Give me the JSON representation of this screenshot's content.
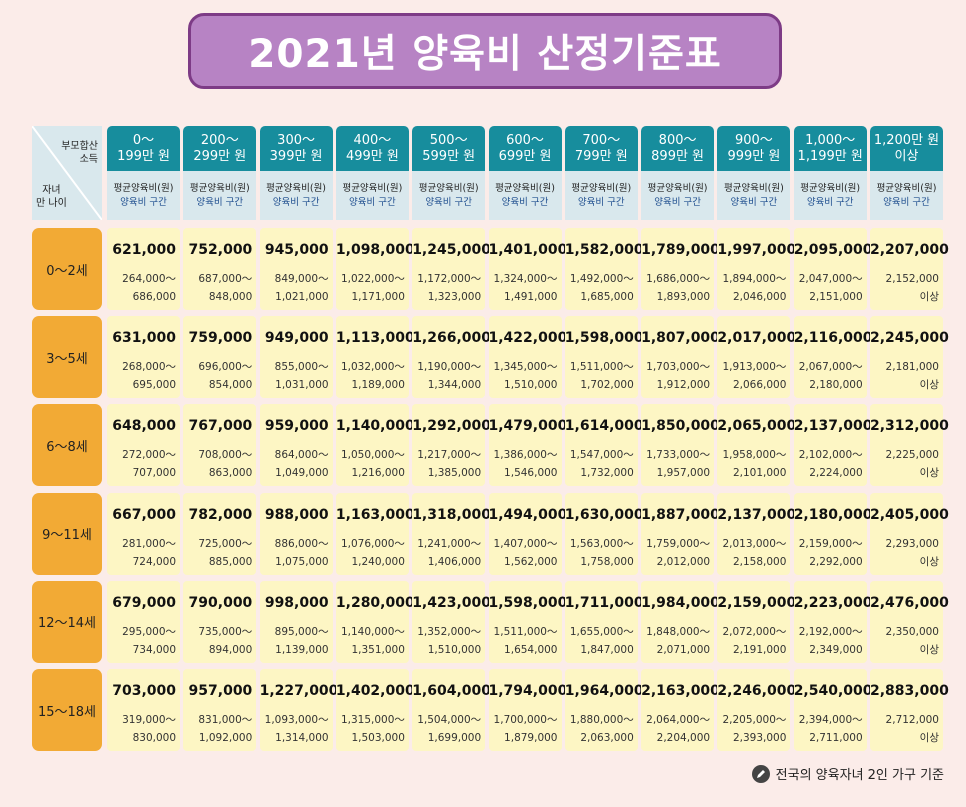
{
  "title": "2021년 양육비 산정기준표",
  "corner": {
    "income_label_1": "부모합산",
    "income_label_2": "소득",
    "age_label_1": "자녀",
    "age_label_2": "만 나이"
  },
  "columns": [
    {
      "l1": "0～",
      "l2": "199만 원"
    },
    {
      "l1": "200～",
      "l2": "299만 원"
    },
    {
      "l1": "300～",
      "l2": "399만 원"
    },
    {
      "l1": "400～",
      "l2": "499만 원"
    },
    {
      "l1": "500～",
      "l2": "599만 원"
    },
    {
      "l1": "600～",
      "l2": "699만 원"
    },
    {
      "l1": "700～",
      "l2": "799만 원"
    },
    {
      "l1": "800～",
      "l2": "899만 원"
    },
    {
      "l1": "900～",
      "l2": "999만 원"
    },
    {
      "l1": "1,000～",
      "l2": "1,199만 원"
    },
    {
      "l1": "1,200만 원",
      "l2": "이상"
    }
  ],
  "subheader": {
    "avg": "평균양육비(원)",
    "range": "양육비 구간"
  },
  "rows": [
    {
      "age": "0～2세",
      "cells": [
        {
          "avg": "621,000",
          "r1": "264,000～",
          "r2": "686,000"
        },
        {
          "avg": "752,000",
          "r1": "687,000～",
          "r2": "848,000"
        },
        {
          "avg": "945,000",
          "r1": "849,000～",
          "r2": "1,021,000"
        },
        {
          "avg": "1,098,000",
          "r1": "1,022,000～",
          "r2": "1,171,000"
        },
        {
          "avg": "1,245,000",
          "r1": "1,172,000～",
          "r2": "1,323,000"
        },
        {
          "avg": "1,401,000",
          "r1": "1,324,000～",
          "r2": "1,491,000"
        },
        {
          "avg": "1,582,000",
          "r1": "1,492,000～",
          "r2": "1,685,000"
        },
        {
          "avg": "1,789,000",
          "r1": "1,686,000～",
          "r2": "1,893,000"
        },
        {
          "avg": "1,997,000",
          "r1": "1,894,000～",
          "r2": "2,046,000"
        },
        {
          "avg": "2,095,000",
          "r1": "2,047,000～",
          "r2": "2,151,000"
        },
        {
          "avg": "2,207,000",
          "r1": "2,152,000",
          "r2": "이상"
        }
      ]
    },
    {
      "age": "3～5세",
      "cells": [
        {
          "avg": "631,000",
          "r1": "268,000～",
          "r2": "695,000"
        },
        {
          "avg": "759,000",
          "r1": "696,000～",
          "r2": "854,000"
        },
        {
          "avg": "949,000",
          "r1": "855,000～",
          "r2": "1,031,000"
        },
        {
          "avg": "1,113,000",
          "r1": "1,032,000～",
          "r2": "1,189,000"
        },
        {
          "avg": "1,266,000",
          "r1": "1,190,000～",
          "r2": "1,344,000"
        },
        {
          "avg": "1,422,000",
          "r1": "1,345,000～",
          "r2": "1,510,000"
        },
        {
          "avg": "1,598,000",
          "r1": "1,511,000～",
          "r2": "1,702,000"
        },
        {
          "avg": "1,807,000",
          "r1": "1,703,000～",
          "r2": "1,912,000"
        },
        {
          "avg": "2,017,000",
          "r1": "1,913,000～",
          "r2": "2,066,000"
        },
        {
          "avg": "2,116,000",
          "r1": "2,067,000～",
          "r2": "2,180,000"
        },
        {
          "avg": "2,245,000",
          "r1": "2,181,000",
          "r2": "이상"
        }
      ]
    },
    {
      "age": "6～8세",
      "cells": [
        {
          "avg": "648,000",
          "r1": "272,000～",
          "r2": "707,000"
        },
        {
          "avg": "767,000",
          "r1": "708,000～",
          "r2": "863,000"
        },
        {
          "avg": "959,000",
          "r1": "864,000～",
          "r2": "1,049,000"
        },
        {
          "avg": "1,140,000",
          "r1": "1,050,000～",
          "r2": "1,216,000"
        },
        {
          "avg": "1,292,000",
          "r1": "1,217,000～",
          "r2": "1,385,000"
        },
        {
          "avg": "1,479,000",
          "r1": "1,386,000～",
          "r2": "1,546,000"
        },
        {
          "avg": "1,614,000",
          "r1": "1,547,000～",
          "r2": "1,732,000"
        },
        {
          "avg": "1,850,000",
          "r1": "1,733,000～",
          "r2": "1,957,000"
        },
        {
          "avg": "2,065,000",
          "r1": "1,958,000～",
          "r2": "2,101,000"
        },
        {
          "avg": "2,137,000",
          "r1": "2,102,000～",
          "r2": "2,224,000"
        },
        {
          "avg": "2,312,000",
          "r1": "2,225,000",
          "r2": "이상"
        }
      ]
    },
    {
      "age": "9～11세",
      "cells": [
        {
          "avg": "667,000",
          "r1": "281,000～",
          "r2": "724,000"
        },
        {
          "avg": "782,000",
          "r1": "725,000～",
          "r2": "885,000"
        },
        {
          "avg": "988,000",
          "r1": "886,000～",
          "r2": "1,075,000"
        },
        {
          "avg": "1,163,000",
          "r1": "1,076,000～",
          "r2": "1,240,000"
        },
        {
          "avg": "1,318,000",
          "r1": "1,241,000～",
          "r2": "1,406,000"
        },
        {
          "avg": "1,494,000",
          "r1": "1,407,000～",
          "r2": "1,562,000"
        },
        {
          "avg": "1,630,000",
          "r1": "1,563,000～",
          "r2": "1,758,000"
        },
        {
          "avg": "1,887,000",
          "r1": "1,759,000～",
          "r2": "2,012,000"
        },
        {
          "avg": "2,137,000",
          "r1": "2,013,000～",
          "r2": "2,158,000"
        },
        {
          "avg": "2,180,000",
          "r1": "2,159,000～",
          "r2": "2,292,000"
        },
        {
          "avg": "2,405,000",
          "r1": "2,293,000",
          "r2": "이상"
        }
      ]
    },
    {
      "age": "12～14세",
      "cells": [
        {
          "avg": "679,000",
          "r1": "295,000～",
          "r2": "734,000"
        },
        {
          "avg": "790,000",
          "r1": "735,000～",
          "r2": "894,000"
        },
        {
          "avg": "998,000",
          "r1": "895,000～",
          "r2": "1,139,000"
        },
        {
          "avg": "1,280,000",
          "r1": "1,140,000～",
          "r2": "1,351,000"
        },
        {
          "avg": "1,423,000",
          "r1": "1,352,000～",
          "r2": "1,510,000"
        },
        {
          "avg": "1,598,000",
          "r1": "1,511,000～",
          "r2": "1,654,000"
        },
        {
          "avg": "1,711,000",
          "r1": "1,655,000～",
          "r2": "1,847,000"
        },
        {
          "avg": "1,984,000",
          "r1": "1,848,000～",
          "r2": "2,071,000"
        },
        {
          "avg": "2,159,000",
          "r1": "2,072,000～",
          "r2": "2,191,000"
        },
        {
          "avg": "2,223,000",
          "r1": "2,192,000～",
          "r2": "2,349,000"
        },
        {
          "avg": "2,476,000",
          "r1": "2,350,000",
          "r2": "이상"
        }
      ]
    },
    {
      "age": "15～18세",
      "cells": [
        {
          "avg": "703,000",
          "r1": "319,000～",
          "r2": "830,000"
        },
        {
          "avg": "957,000",
          "r1": "831,000～",
          "r2": "1,092,000"
        },
        {
          "avg": "1,227,000",
          "r1": "1,093,000～",
          "r2": "1,314,000"
        },
        {
          "avg": "1,402,000",
          "r1": "1,315,000～",
          "r2": "1,503,000"
        },
        {
          "avg": "1,604,000",
          "r1": "1,504,000～",
          "r2": "1,699,000"
        },
        {
          "avg": "1,794,000",
          "r1": "1,700,000～",
          "r2": "1,879,000"
        },
        {
          "avg": "1,964,000",
          "r1": "1,880,000～",
          "r2": "2,063,000"
        },
        {
          "avg": "2,163,000",
          "r1": "2,064,000～",
          "r2": "2,204,000"
        },
        {
          "avg": "2,246,000",
          "r1": "2,205,000～",
          "r2": "2,393,000"
        },
        {
          "avg": "2,540,000",
          "r1": "2,394,000～",
          "r2": "2,711,000"
        },
        {
          "avg": "2,883,000",
          "r1": "2,712,000",
          "r2": "이상"
        }
      ]
    }
  ],
  "footer": {
    "icon": "pencil-icon",
    "text": "전국의 양육자녀 2인 가구 기준"
  }
}
